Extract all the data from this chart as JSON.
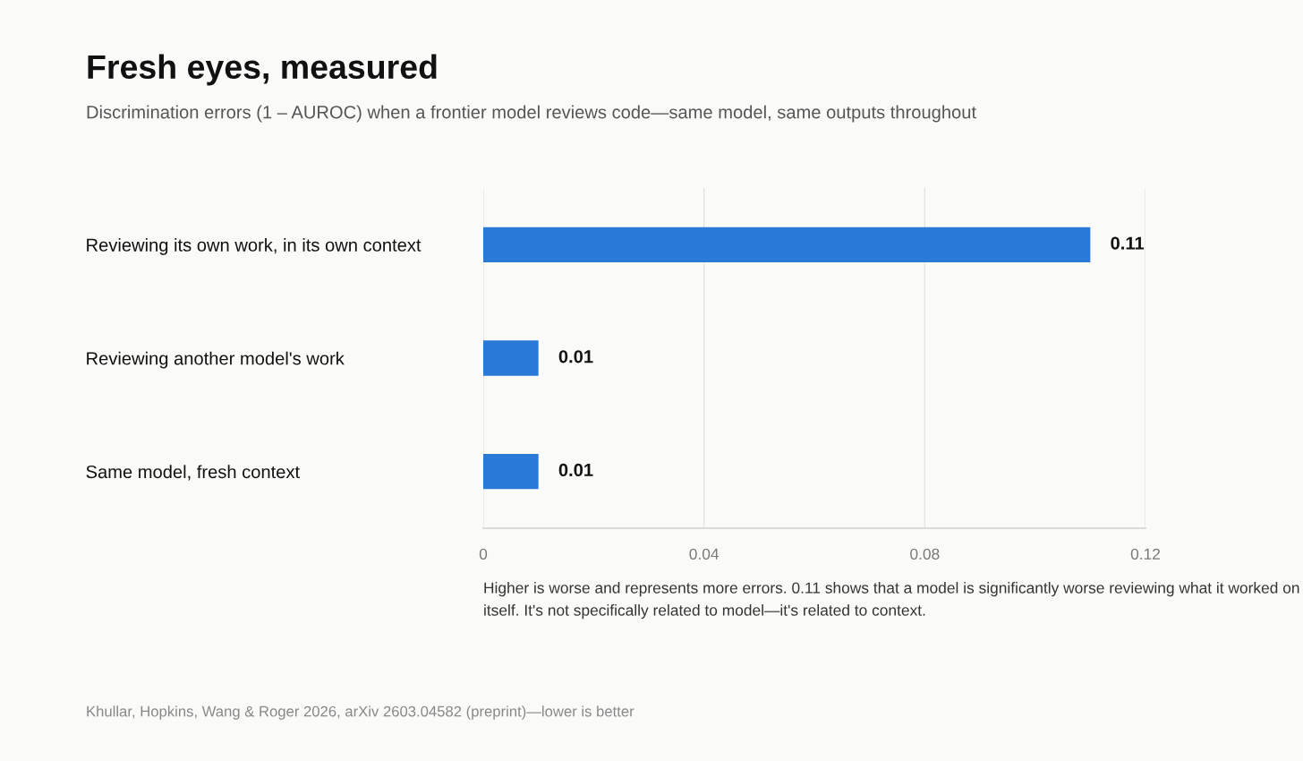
{
  "chart_data": {
    "type": "bar",
    "orientation": "horizontal",
    "title": "Fresh eyes, measured",
    "subtitle": "Discrimination errors (1 – AUROC) when a frontier model reviews code—same model, same outputs throughout",
    "categories": [
      "Reviewing its own work, in its own context",
      "Reviewing another model's work",
      "Same model, fresh context"
    ],
    "values": [
      0.11,
      0.01,
      0.01
    ],
    "color": "#2979d6",
    "data_labels": true,
    "xlim": [
      0,
      0.12
    ],
    "xticks": [
      0,
      0.04,
      0.08,
      0.12
    ],
    "grid": "x",
    "annotations": [
      "Higher is worse and represents more errors. 0.11 shows that a model is significantly worse reviewing what it worked on itself. It's not specifically related to model—it's related to context.",
      "Khullar, Hopkins, Wang & Roger 2026, arXiv 2603.04582 (preprint)—lower is better"
    ]
  }
}
